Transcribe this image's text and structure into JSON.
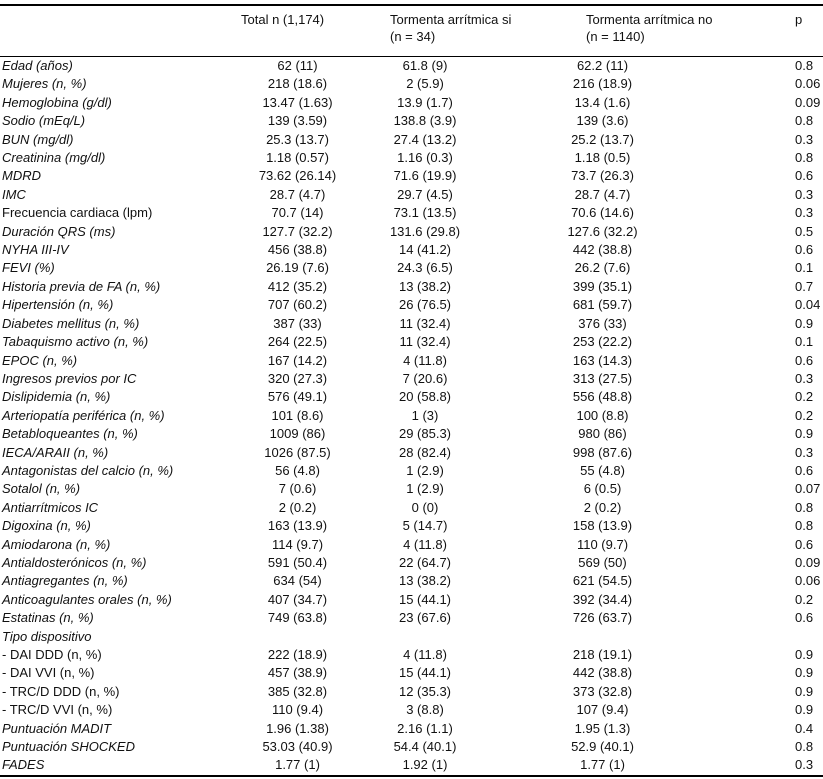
{
  "table": {
    "header": {
      "total": "Total n (1,174)",
      "storm_yes_line1": "Tormenta arrítmica si",
      "storm_yes_line2": "(n = 34)",
      "storm_no_line1": "Tormenta arrítmica no",
      "storm_no_line2": "(n = 1140)",
      "p": "p"
    },
    "rows": [
      {
        "label": "Edad (años)",
        "italic": true,
        "total": "62 (11)",
        "storm_yes": "61.8 (9)",
        "storm_no": "62.2 (11)",
        "p": "0.8"
      },
      {
        "label": "Mujeres (n, %)",
        "italic": true,
        "total": "218 (18.6)",
        "storm_yes": "2 (5.9)",
        "storm_no": "216 (18.9)",
        "p": "0.06"
      },
      {
        "label": "Hemoglobina (g/dl)",
        "italic": true,
        "total": "13.47 (1.63)",
        "storm_yes": "13.9 (1.7)",
        "storm_no": "13.4 (1.6)",
        "p": "0.09"
      },
      {
        "label": "Sodio (mEq/L)",
        "italic": true,
        "total": "139 (3.59)",
        "storm_yes": "138.8 (3.9)",
        "storm_no": "139 (3.6)",
        "p": "0.8"
      },
      {
        "label": "BUN (mg/dl)",
        "italic": true,
        "total": "25.3 (13.7)",
        "storm_yes": "27.4 (13.2)",
        "storm_no": "25.2 (13.7)",
        "p": "0.3"
      },
      {
        "label": "Creatinina (mg/dl)",
        "italic": true,
        "total": "1.18 (0.57)",
        "storm_yes": "1.16 (0.3)",
        "storm_no": "1.18 (0.5)",
        "p": "0.8"
      },
      {
        "label": "MDRD",
        "italic": true,
        "total": "73.62 (26.14)",
        "storm_yes": "71.6 (19.9)",
        "storm_no": "73.7 (26.3)",
        "p": "0.6"
      },
      {
        "label": "IMC",
        "italic": true,
        "total": "28.7 (4.7)",
        "storm_yes": "29.7 (4.5)",
        "storm_no": "28.7 (4.7)",
        "p": "0.3"
      },
      {
        "label": "Frecuencia cardiaca (lpm)",
        "italic": false,
        "total": "70.7 (14)",
        "storm_yes": "73.1 (13.5)",
        "storm_no": "70.6 (14.6)",
        "p": "0.3"
      },
      {
        "label": "Duración QRS (ms)",
        "italic": true,
        "total": "127.7 (32.2)",
        "storm_yes": "131.6 (29.8)",
        "storm_no": "127.6 (32.2)",
        "p": "0.5"
      },
      {
        "label": "NYHA III-IV",
        "italic": true,
        "total": "456 (38.8)",
        "storm_yes": "14 (41.2)",
        "storm_no": "442 (38.8)",
        "p": "0.6"
      },
      {
        "label": "FEVI (%)",
        "italic": true,
        "total": "26.19 (7.6)",
        "storm_yes": "24.3 (6.5)",
        "storm_no": "26.2 (7.6)",
        "p": "0.1"
      },
      {
        "label": "Historia previa de FA (n, %)",
        "italic": true,
        "total": "412 (35.2)",
        "storm_yes": "13 (38.2)",
        "storm_no": "399 (35.1)",
        "p": "0.7"
      },
      {
        "label": "Hipertensión (n, %)",
        "italic": true,
        "total": "707 (60.2)",
        "storm_yes": "26 (76.5)",
        "storm_no": "681 (59.7)",
        "p": "0.04"
      },
      {
        "label": "Diabetes mellitus (n, %)",
        "italic": true,
        "total": "387 (33)",
        "storm_yes": "11 (32.4)",
        "storm_no": "376 (33)",
        "p": "0.9"
      },
      {
        "label": "Tabaquismo activo (n, %)",
        "italic": true,
        "total": "264 (22.5)",
        "storm_yes": "11 (32.4)",
        "storm_no": "253 (22.2)",
        "p": "0.1"
      },
      {
        "label": "EPOC (n, %)",
        "italic": true,
        "total": "167 (14.2)",
        "storm_yes": "4 (11.8)",
        "storm_no": "163 (14.3)",
        "p": "0.6"
      },
      {
        "label": "Ingresos previos por IC",
        "italic": true,
        "total": "320 (27.3)",
        "storm_yes": "7 (20.6)",
        "storm_no": "313 (27.5)",
        "p": "0.3"
      },
      {
        "label": "Dislipidemia (n, %)",
        "italic": true,
        "total": "576 (49.1)",
        "storm_yes": "20 (58.8)",
        "storm_no": "556 (48.8)",
        "p": "0.2"
      },
      {
        "label": "Arteriopatía periférica (n, %)",
        "italic": true,
        "total": "101 (8.6)",
        "storm_yes": "1 (3)",
        "storm_no": "100 (8.8)",
        "p": "0.2"
      },
      {
        "label": "Betabloqueantes (n, %)",
        "italic": true,
        "total": "1009 (86)",
        "storm_yes": "29 (85.3)",
        "storm_no": "980 (86)",
        "p": "0.9"
      },
      {
        "label": "IECA/ARAII (n, %)",
        "italic": true,
        "total": "1026 (87.5)",
        "storm_yes": "28 (82.4)",
        "storm_no": "998 (87.6)",
        "p": "0.3"
      },
      {
        "label": "Antagonistas del calcio (n, %)",
        "italic": true,
        "total": "56 (4.8)",
        "storm_yes": "1 (2.9)",
        "storm_no": "55 (4.8)",
        "p": "0.6"
      },
      {
        "label": "Sotalol (n, %)",
        "italic": true,
        "total": "7 (0.6)",
        "storm_yes": "1 (2.9)",
        "storm_no": "6 (0.5)",
        "p": "0.07"
      },
      {
        "label": "Antiarrítmicos IC",
        "italic": true,
        "total": "2 (0.2)",
        "storm_yes": "0 (0)",
        "storm_no": "2 (0.2)",
        "p": "0.8"
      },
      {
        "label": "Digoxina (n, %)",
        "italic": true,
        "total": "163 (13.9)",
        "storm_yes": "5 (14.7)",
        "storm_no": "158 (13.9)",
        "p": "0.8"
      },
      {
        "label": "Amiodarona (n, %)",
        "italic": true,
        "total": "114 (9.7)",
        "storm_yes": "4 (11.8)",
        "storm_no": "110 (9.7)",
        "p": "0.6"
      },
      {
        "label": "Antialdosterónicos (n, %)",
        "italic": true,
        "total": "591 (50.4)",
        "storm_yes": "22 (64.7)",
        "storm_no": "569 (50)",
        "p": "0.09"
      },
      {
        "label": "Antiagregantes (n, %)",
        "italic": true,
        "total": "634 (54)",
        "storm_yes": "13 (38.2)",
        "storm_no": "621 (54.5)",
        "p": "0.06"
      },
      {
        "label": "Anticoagulantes orales (n, %)",
        "italic": true,
        "total": "407 (34.7)",
        "storm_yes": "15 (44.1)",
        "storm_no": "392 (34.4)",
        "p": "0.2"
      },
      {
        "label": "Estatinas (n, %)",
        "italic": true,
        "total": "749 (63.8)",
        "storm_yes": "23 (67.6)",
        "storm_no": "726 (63.7)",
        "p": "0.6"
      },
      {
        "label": "Tipo dispositivo",
        "italic": true,
        "total": "",
        "storm_yes": "",
        "storm_no": "",
        "p": ""
      },
      {
        "label": "- DAI DDD (n, %)",
        "italic": false,
        "total": "222 (18.9)",
        "storm_yes": "4 (11.8)",
        "storm_no": "218 (19.1)",
        "p": "0.9"
      },
      {
        "label": "- DAI VVI (n, %)",
        "italic": false,
        "total": "457 (38.9)",
        "storm_yes": "15 (44.1)",
        "storm_no": "442 (38.8)",
        "p": "0.9"
      },
      {
        "label": "- TRC/D DDD (n, %)",
        "italic": false,
        "total": "385 (32.8)",
        "storm_yes": "12 (35.3)",
        "storm_no": "373 (32.8)",
        "p": "0.9"
      },
      {
        "label": "- TRC/D VVI (n, %)",
        "italic": false,
        "total": "110 (9.4)",
        "storm_yes": "3 (8.8)",
        "storm_no": "107 (9.4)",
        "p": "0.9"
      },
      {
        "label": "Puntuación MADIT",
        "italic": true,
        "total": "1.96 (1.38)",
        "storm_yes": "2.16 (1.1)",
        "storm_no": "1.95 (1.3)",
        "p": "0.4"
      },
      {
        "label": "Puntuación SHOCKED",
        "italic": true,
        "total": "53.03 (40.9)",
        "storm_yes": "54.4 (40.1)",
        "storm_no": "52.9 (40.1)",
        "p": "0.8"
      },
      {
        "label": "FADES",
        "italic": true,
        "total": "1.77 (1)",
        "storm_yes": "1.92 (1)",
        "storm_no": "1.77 (1)",
        "p": "0.3"
      }
    ]
  }
}
